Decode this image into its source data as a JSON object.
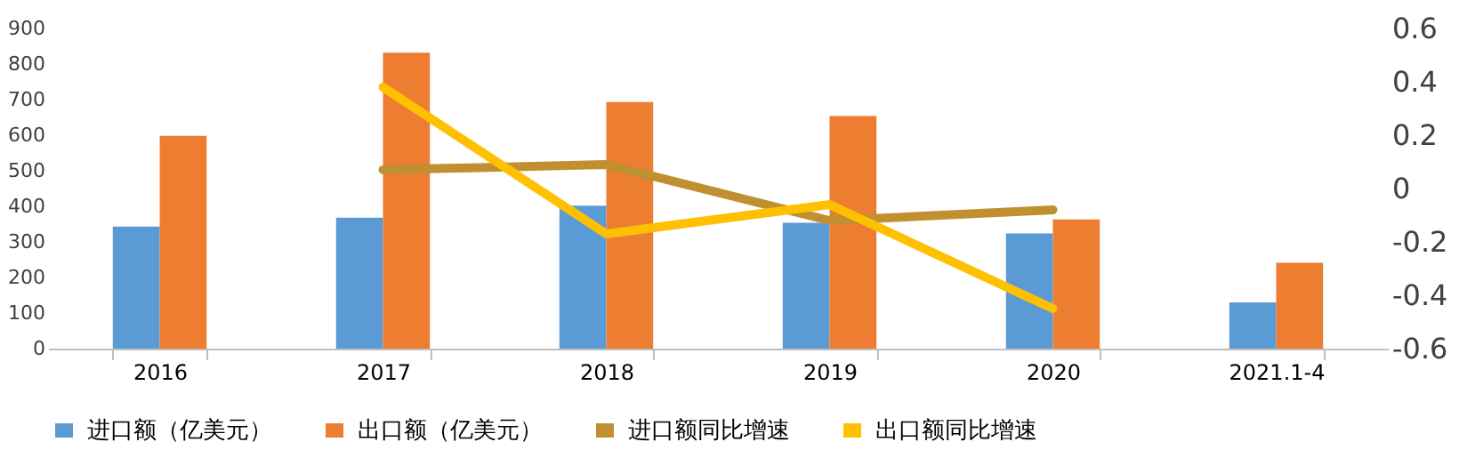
{
  "chart_data": {
    "type": "bar",
    "categories": [
      "2016",
      "2017",
      "2018",
      "2019",
      "2020",
      "2021.1-4"
    ],
    "series": [
      {
        "name": "进口额（亿美元）",
        "color": "#5b9bd5",
        "values": [
          343,
          368,
          402,
          354,
          324,
          130
        ]
      },
      {
        "name": "出口额（亿美元）",
        "color": "#ed7d31",
        "values": [
          598,
          832,
          693,
          654,
          363,
          241
        ]
      },
      {
        "name": "进口额同比增速",
        "type": "line",
        "axis": "y2",
        "color": "#bf9030",
        "values": [
          null,
          0.07,
          0.09,
          -0.12,
          -0.08,
          null
        ]
      },
      {
        "name": "出口额同比增速",
        "type": "line",
        "axis": "y2",
        "color": "#ffc000",
        "values": [
          null,
          0.38,
          -0.17,
          -0.06,
          -0.45,
          null
        ]
      }
    ],
    "ylim": [
      0,
      900
    ],
    "yticks": [
      0,
      100,
      200,
      300,
      400,
      500,
      600,
      700,
      800,
      900
    ],
    "y2lim": [
      -0.6,
      0.6
    ],
    "y2ticks": [
      -0.6,
      -0.4,
      -0.2,
      0,
      0.2,
      0.4,
      0.6
    ],
    "grid": false,
    "legend": "bottom"
  }
}
